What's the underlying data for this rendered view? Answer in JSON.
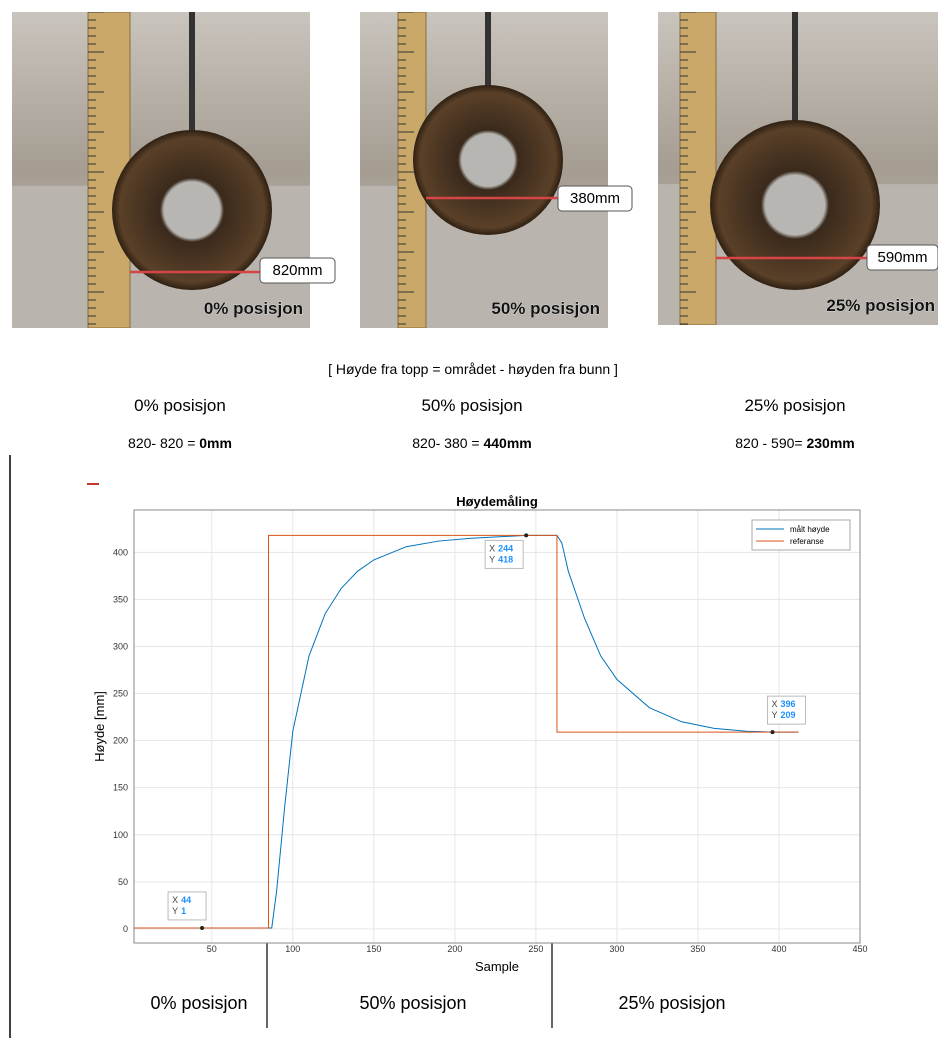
{
  "photos": [
    {
      "measurement": "820mm",
      "caption": "0% posisjon"
    },
    {
      "measurement": "380mm",
      "caption": "50% posisjon"
    },
    {
      "measurement": "590mm",
      "caption": "25% posisjon"
    }
  ],
  "formula": "[ Høyde fra topp = området - høyden fra bunn ]",
  "columns": [
    {
      "title": "0% posisjon",
      "expression": "820- 820 = ",
      "result": "0mm"
    },
    {
      "title": "50% posisjon",
      "expression": "820- 380 = ",
      "result": "440mm"
    },
    {
      "title": "25% posisjon",
      "expression": "820 - 590= ",
      "result": "230mm"
    }
  ],
  "chart_data": {
    "type": "line",
    "title": "Høydemåling",
    "x_label": "Sample",
    "y_label": "Høyde [mm]",
    "xlim": [
      2,
      450
    ],
    "ylim": [
      -15,
      445
    ],
    "xticks": [
      50,
      100,
      150,
      200,
      250,
      300,
      350,
      400,
      450
    ],
    "yticks": [
      0,
      50,
      100,
      150,
      200,
      250,
      300,
      350,
      400
    ],
    "grid": true,
    "legend": "top-right",
    "series": [
      {
        "name": "målt høyde",
        "color": "#0072bd",
        "x": [
          2,
          44,
          87,
          90,
          95,
          100,
          110,
          120,
          130,
          140,
          150,
          170,
          190,
          210,
          244,
          263,
          266,
          270,
          280,
          290,
          300,
          320,
          340,
          360,
          380,
          396,
          412
        ],
        "values": [
          1,
          1,
          1,
          40,
          130,
          210,
          290,
          335,
          362,
          380,
          392,
          406,
          412,
          415,
          418,
          418,
          410,
          380,
          330,
          290,
          265,
          235,
          220,
          213,
          210,
          209,
          209
        ]
      },
      {
        "name": "referanse",
        "color": "#d95319",
        "x": [
          2,
          85,
          85,
          263,
          263,
          412
        ],
        "values": [
          1,
          1,
          418,
          418,
          209,
          209
        ]
      }
    ],
    "datatips": [
      {
        "x_label": "X",
        "x": 44,
        "y_label": "Y",
        "y": 1
      },
      {
        "x_label": "X",
        "x": 244,
        "y_label": "Y",
        "y": 418
      },
      {
        "x_label": "X",
        "x": 396,
        "y_label": "Y",
        "y": 209
      }
    ]
  },
  "phases": [
    "0% posisjon",
    "50% posisjon",
    "25% posisjon"
  ]
}
